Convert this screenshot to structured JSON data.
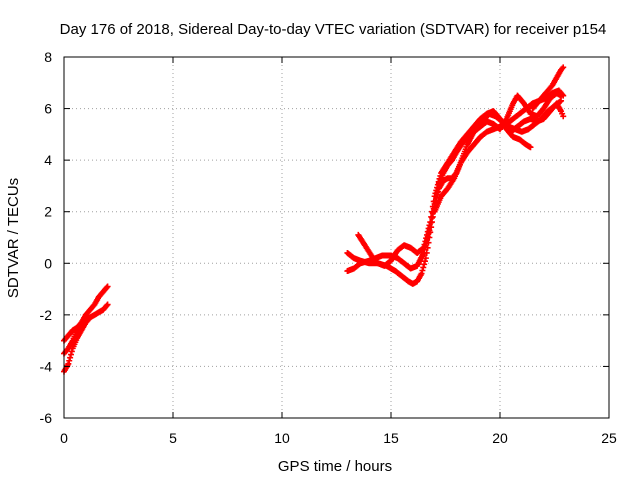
{
  "chart_data": {
    "type": "scatter",
    "title": "Day 176 of 2018, Sidereal Day-to-day VTEC variation (SDTVAR) for receiver p154",
    "xlabel": "GPS time / hours",
    "ylabel": "SDTVAR / TECUs",
    "xlim": [
      0,
      25
    ],
    "ylim": [
      -6,
      8
    ],
    "xticks": [
      0,
      5,
      10,
      15,
      20,
      25
    ],
    "yticks": [
      -6,
      -4,
      -2,
      0,
      2,
      4,
      6,
      8
    ],
    "grid": true,
    "marker": "+",
    "series_color": "#ff0000",
    "series": [
      {
        "values": [
          [
            0.0,
            -4.2
          ],
          [
            0.2,
            -3.9
          ],
          [
            0.4,
            -3.3
          ],
          [
            0.6,
            -2.9
          ],
          [
            0.8,
            -2.6
          ],
          [
            1.0,
            -2.3
          ],
          [
            1.2,
            -2.1
          ],
          [
            1.4,
            -2.0
          ],
          [
            1.6,
            -1.9
          ],
          [
            1.8,
            -1.8
          ],
          [
            2.0,
            -1.6
          ]
        ]
      },
      {
        "values": [
          [
            0.0,
            -3.0
          ],
          [
            0.2,
            -2.8
          ],
          [
            0.4,
            -2.6
          ],
          [
            0.6,
            -2.5
          ],
          [
            0.8,
            -2.3
          ],
          [
            1.0,
            -2.0
          ],
          [
            1.2,
            -1.8
          ],
          [
            1.4,
            -1.6
          ],
          [
            1.6,
            -1.3
          ],
          [
            1.8,
            -1.1
          ],
          [
            2.0,
            -0.9
          ]
        ]
      },
      {
        "values": [
          [
            0.0,
            -3.5
          ],
          [
            0.2,
            -3.3
          ],
          [
            0.4,
            -3.0
          ],
          [
            0.6,
            -2.6
          ],
          [
            0.8,
            -2.4
          ],
          [
            1.0,
            -2.2
          ],
          [
            1.2,
            -2.1
          ]
        ]
      },
      {
        "values": [
          [
            13.0,
            0.4
          ],
          [
            13.3,
            0.2
          ],
          [
            13.6,
            0.1
          ],
          [
            14.0,
            0.0
          ],
          [
            14.4,
            0.0
          ],
          [
            14.8,
            -0.1
          ],
          [
            15.2,
            -0.3
          ],
          [
            15.5,
            -0.5
          ],
          [
            15.8,
            -0.7
          ],
          [
            16.0,
            -0.8
          ],
          [
            16.2,
            -0.7
          ],
          [
            16.4,
            -0.4
          ],
          [
            16.6,
            0.2
          ],
          [
            16.8,
            1.2
          ],
          [
            17.0,
            2.2
          ],
          [
            17.2,
            3.1
          ],
          [
            17.4,
            3.5
          ],
          [
            17.6,
            3.8
          ],
          [
            17.8,
            4.0
          ],
          [
            18.0,
            4.3
          ],
          [
            18.3,
            4.7
          ],
          [
            18.6,
            5.0
          ],
          [
            18.9,
            5.3
          ],
          [
            19.2,
            5.5
          ],
          [
            19.5,
            5.8
          ],
          [
            19.8,
            5.7
          ],
          [
            20.1,
            5.5
          ],
          [
            20.4,
            5.3
          ],
          [
            20.7,
            5.2
          ],
          [
            21.0,
            5.1
          ],
          [
            21.3,
            5.2
          ],
          [
            21.6,
            5.4
          ],
          [
            21.9,
            5.6
          ],
          [
            22.2,
            5.9
          ],
          [
            22.5,
            6.1
          ],
          [
            22.8,
            6.3
          ]
        ]
      },
      {
        "values": [
          [
            13.0,
            -0.3
          ],
          [
            13.3,
            -0.2
          ],
          [
            13.6,
            0.0
          ],
          [
            14.0,
            0.1
          ],
          [
            14.3,
            0.2
          ],
          [
            14.6,
            0.3
          ],
          [
            15.0,
            0.3
          ],
          [
            15.3,
            0.2
          ],
          [
            15.6,
            0.0
          ],
          [
            15.9,
            -0.2
          ],
          [
            16.2,
            -0.1
          ],
          [
            16.5,
            0.4
          ],
          [
            16.8,
            1.4
          ],
          [
            17.0,
            2.3
          ],
          [
            17.2,
            2.9
          ],
          [
            17.4,
            3.2
          ],
          [
            17.6,
            3.3
          ],
          [
            17.8,
            3.3
          ],
          [
            18.0,
            3.5
          ],
          [
            18.2,
            3.9
          ],
          [
            18.5,
            4.3
          ],
          [
            18.8,
            4.6
          ],
          [
            19.1,
            4.9
          ],
          [
            19.4,
            5.1
          ],
          [
            19.7,
            5.2
          ],
          [
            20.0,
            5.3
          ],
          [
            20.3,
            5.4
          ],
          [
            20.6,
            5.6
          ],
          [
            20.9,
            5.8
          ],
          [
            21.2,
            6.0
          ],
          [
            21.5,
            6.2
          ],
          [
            21.8,
            6.3
          ],
          [
            22.1,
            6.4
          ],
          [
            22.4,
            6.6
          ],
          [
            22.7,
            6.7
          ],
          [
            22.9,
            6.5
          ]
        ]
      },
      {
        "values": [
          [
            13.5,
            1.1
          ],
          [
            13.8,
            0.7
          ],
          [
            14.1,
            0.3
          ],
          [
            14.4,
            0.0
          ],
          [
            14.7,
            -0.1
          ],
          [
            15.0,
            0.1
          ],
          [
            15.3,
            0.5
          ],
          [
            15.6,
            0.7
          ],
          [
            15.9,
            0.6
          ],
          [
            16.2,
            0.4
          ],
          [
            16.5,
            0.6
          ],
          [
            16.8,
            1.6
          ],
          [
            17.0,
            2.6
          ],
          [
            17.3,
            3.5
          ],
          [
            17.6,
            3.9
          ],
          [
            17.9,
            4.3
          ],
          [
            18.2,
            4.7
          ],
          [
            18.5,
            5.0
          ],
          [
            18.8,
            5.3
          ],
          [
            19.1,
            5.6
          ],
          [
            19.4,
            5.8
          ],
          [
            19.7,
            5.9
          ],
          [
            20.0,
            5.6
          ],
          [
            20.3,
            5.2
          ],
          [
            20.6,
            4.9
          ],
          [
            20.9,
            4.8
          ],
          [
            21.2,
            4.6
          ],
          [
            21.4,
            4.5
          ]
        ]
      },
      {
        "values": [
          [
            17.0,
            2.0
          ],
          [
            17.3,
            2.6
          ],
          [
            17.6,
            2.9
          ],
          [
            17.9,
            3.3
          ],
          [
            18.2,
            3.9
          ],
          [
            18.5,
            4.6
          ],
          [
            18.8,
            5.1
          ],
          [
            19.1,
            5.3
          ],
          [
            19.4,
            5.5
          ],
          [
            19.7,
            5.4
          ],
          [
            20.0,
            5.2
          ],
          [
            20.3,
            5.6
          ],
          [
            20.6,
            6.2
          ],
          [
            20.8,
            6.5
          ],
          [
            21.1,
            6.2
          ],
          [
            21.4,
            5.8
          ],
          [
            21.7,
            5.7
          ],
          [
            22.0,
            6.0
          ],
          [
            22.3,
            6.4
          ],
          [
            22.6,
            6.6
          ],
          [
            22.8,
            6.5
          ]
        ]
      },
      {
        "values": [
          [
            20.5,
            5.1
          ],
          [
            20.8,
            5.3
          ],
          [
            21.1,
            5.5
          ],
          [
            21.4,
            5.6
          ],
          [
            21.7,
            5.5
          ],
          [
            22.0,
            5.6
          ],
          [
            22.3,
            5.9
          ],
          [
            22.6,
            6.2
          ],
          [
            22.8,
            5.9
          ],
          [
            22.9,
            5.7
          ]
        ]
      },
      {
        "values": [
          [
            21.5,
            6.0
          ],
          [
            21.8,
            6.3
          ],
          [
            22.1,
            6.6
          ],
          [
            22.4,
            6.9
          ],
          [
            22.6,
            7.2
          ],
          [
            22.8,
            7.5
          ],
          [
            22.9,
            7.6
          ]
        ]
      }
    ]
  }
}
